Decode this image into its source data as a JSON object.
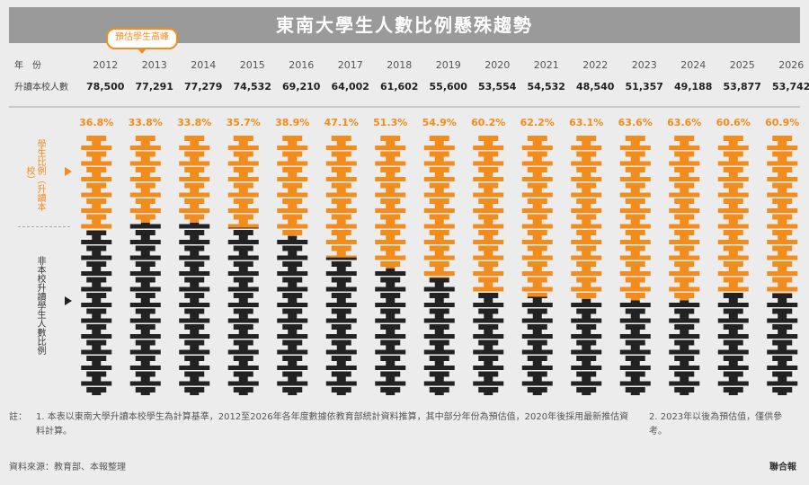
{
  "header": {
    "title": "東南大學生人數比例懸殊趨勢",
    "callout": "預估學生高峰"
  },
  "table": {
    "year_label": "年　份",
    "count_label": "升讀本校人數",
    "years": [
      "2012",
      "2013",
      "2014",
      "2015",
      "2016",
      "2017",
      "2018",
      "2019",
      "2020",
      "2021",
      "2022",
      "2023",
      "2024",
      "2025",
      "2026"
    ],
    "counts": [
      "78,500",
      "77,291",
      "77,279",
      "74,532",
      "69,210",
      "64,002",
      "61,602",
      "55,600",
      "53,554",
      "54,532",
      "48,540",
      "51,357",
      "49,188",
      "53,877",
      "53,742"
    ]
  },
  "chart_data": {
    "type": "bar",
    "stacked": true,
    "categories": [
      "2012",
      "2013",
      "2014",
      "2015",
      "2016",
      "2017",
      "2018",
      "2019",
      "2020",
      "2021",
      "2022",
      "2023",
      "2024",
      "2025",
      "2026"
    ],
    "series": [
      {
        "name": "",
        "color": "#f28c1d",
        "values": [
          36.8,
          33.8,
          33.8,
          35.7,
          38.9,
          47.1,
          51.3,
          54.9,
          60.2,
          62.2,
          63.1,
          63.6,
          63.6,
          60.6,
          60.9
        ]
      },
      {
        "name": "",
        "color": "#222222",
        "values": [
          63.2,
          66.2,
          66.2,
          64.3,
          61.1,
          52.9,
          48.7,
          45.1,
          39.8,
          37.8,
          36.9,
          36.4,
          36.4,
          39.4,
          39.1
        ]
      }
    ],
    "pct_labels": [
      "36.8%",
      "33.8%",
      "33.8%",
      "35.7%",
      "38.9%",
      "47.1%",
      "51.3%",
      "54.9%",
      "60.2%",
      "62.2%",
      "63.1%",
      "63.6%",
      "63.6%",
      "60.6%",
      "60.9%"
    ],
    "ylim": [
      0,
      100
    ],
    "side_labels": [
      "學生比例（升讀本校）",
      "非本校升讀學生人數比例"
    ],
    "legend": "left"
  },
  "notes": {
    "label": "註：",
    "note_1": "1. 本表以東南大學升讀本校學生為計算基準，2012至2026年各年度數據依教育部統計資料推算，其中部分年份為預估值，2020年後採用最新推估資料計算。",
    "note_2": "2. 2023年以後為預估值，僅供參考。",
    "source": "資料來源：教育部、本報整理",
    "brand": "聯合報"
  }
}
